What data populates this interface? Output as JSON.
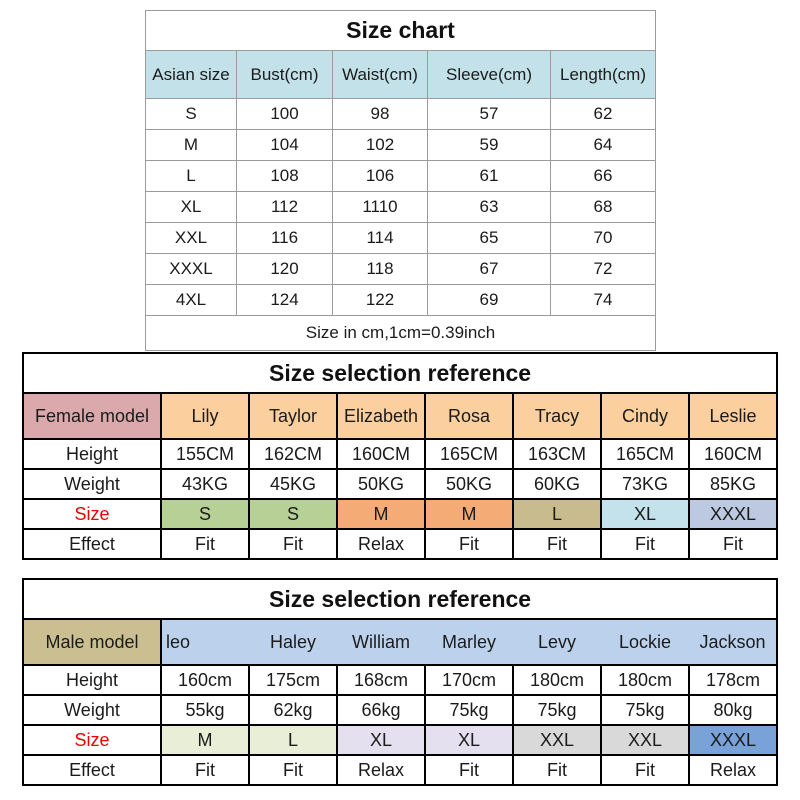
{
  "size_chart": {
    "title": "Size chart",
    "columns": [
      "Asian size",
      "Bust(cm)",
      "Waist(cm)",
      "Sleeve(cm)",
      "Length(cm)"
    ],
    "rows": [
      [
        "S",
        "100",
        "98",
        "57",
        "62"
      ],
      [
        "M",
        "104",
        "102",
        "59",
        "64"
      ],
      [
        "L",
        "108",
        "106",
        "61",
        "66"
      ],
      [
        "XL",
        "112",
        "1110",
        "63",
        "68"
      ],
      [
        "XXL",
        "116",
        "114",
        "65",
        "70"
      ],
      [
        "XXXL",
        "120",
        "118",
        "67",
        "72"
      ],
      [
        "4XL",
        "124",
        "122",
        "69",
        "74"
      ]
    ],
    "footnote": "Size in cm,1cm=0.39inch",
    "header_bg": "#c3e1e9"
  },
  "female_reference": {
    "title": "Size selection reference",
    "header_label": "Female model",
    "header_label_bg": "#dba8ac",
    "names_bg": "#fbcf9e",
    "names": [
      "Lily",
      "Taylor",
      "Elizabeth",
      "Rosa",
      "Tracy",
      "Cindy",
      "Leslie"
    ],
    "row_labels": [
      "Height",
      "Weight",
      "Size",
      "Effect"
    ],
    "heights": [
      "155CM",
      "162CM",
      "160CM",
      "165CM",
      "163CM",
      "165CM",
      "160CM"
    ],
    "weights": [
      "43KG",
      "45KG",
      "50KG",
      "50KG",
      "60KG",
      "73KG",
      "85KG"
    ],
    "sizes": [
      {
        "label": "S",
        "bg": "#b6d095"
      },
      {
        "label": "S",
        "bg": "#b6d095"
      },
      {
        "label": "M",
        "bg": "#f4ab75"
      },
      {
        "label": "M",
        "bg": "#f4ab75"
      },
      {
        "label": "L",
        "bg": "#c8bc8e"
      },
      {
        "label": "XL",
        "bg": "#c3e2ec"
      },
      {
        "label": "XXXL",
        "bg": "#bdc9e0"
      }
    ],
    "effects": [
      "Fit",
      "Fit",
      "Relax",
      "Fit",
      "Fit",
      "Fit",
      "Fit"
    ],
    "size_label_color": "#ee0000"
  },
  "male_reference": {
    "title": "Size selection reference",
    "header_label": "Male model",
    "header_label_bg": "#cbbf92",
    "names_bg": "#bcd2ec",
    "names": [
      "leo",
      "Haley",
      "William",
      "Marley",
      "Levy",
      "Lockie",
      "Jackson"
    ],
    "row_labels": [
      "Height",
      "Weight",
      "Size",
      "Effect"
    ],
    "heights": [
      "160cm",
      "175cm",
      "168cm",
      "170cm",
      "180cm",
      "180cm",
      "178cm"
    ],
    "weights": [
      "55kg",
      "62kg",
      "66kg",
      "75kg",
      "75kg",
      "75kg",
      "80kg"
    ],
    "sizes": [
      {
        "label": "M",
        "bg": "#e9eed7"
      },
      {
        "label": "L",
        "bg": "#e9eed7"
      },
      {
        "label": "XL",
        "bg": "#e4e0ef"
      },
      {
        "label": "XL",
        "bg": "#e4e0ef"
      },
      {
        "label": "XXL",
        "bg": "#d9d9d9"
      },
      {
        "label": "XXL",
        "bg": "#d9d9d9"
      },
      {
        "label": "XXXL",
        "bg": "#78a2d8"
      }
    ],
    "effects": [
      "Fit",
      "Fit",
      "Relax",
      "Fit",
      "Fit",
      "Fit",
      "Relax"
    ],
    "size_label_color": "#ee0000"
  }
}
